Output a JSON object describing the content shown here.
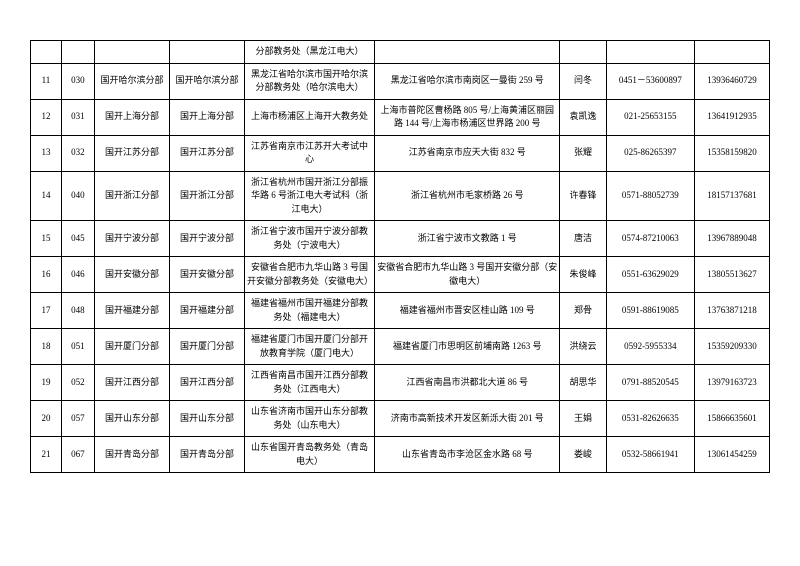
{
  "table": {
    "columns": [
      "c0",
      "c1",
      "c2",
      "c3",
      "c4",
      "c5",
      "c6",
      "c7",
      "c8"
    ],
    "rows": [
      [
        "",
        "",
        "",
        "",
        "分部教务处（黑龙江电大）",
        "",
        "",
        "",
        ""
      ],
      [
        "11",
        "030",
        "国开哈尔滨分部",
        "国开哈尔滨分部",
        "黑龙江省哈尔滨市国开哈尔滨分部教务处（哈尔滨电大）",
        "黑龙江省哈尔滨市南岗区一曼街 259 号",
        "闫冬",
        "0451－53600897",
        "13936460729"
      ],
      [
        "12",
        "031",
        "国开上海分部",
        "国开上海分部",
        "上海市杨浦区上海开大教务处",
        "上海市普陀区曹杨路 805 号/上海黄浦区丽园路 144 号/上海市杨浦区世界路 200 号",
        "袁凯逸",
        "021-25653155",
        "13641912935"
      ],
      [
        "13",
        "032",
        "国开江苏分部",
        "国开江苏分部",
        "江苏省南京市江苏开大考试中心",
        "江苏省南京市应天大街 832 号",
        "张耀",
        "025-86265397",
        "15358159820"
      ],
      [
        "14",
        "040",
        "国开浙江分部",
        "国开浙江分部",
        "浙江省杭州市国开浙江分部振华路 6 号浙江电大考试科（浙江电大）",
        "浙江省杭州市毛家桥路 26 号",
        "许春锋",
        "0571-88052739",
        "18157137681"
      ],
      [
        "15",
        "045",
        "国开宁波分部",
        "国开宁波分部",
        "浙江省宁波市国开宁波分部教务处（宁波电大）",
        "浙江省宁波市文教路 1 号",
        "唐洁",
        "0574-87210063",
        "13967889048"
      ],
      [
        "16",
        "046",
        "国开安徽分部",
        "国开安徽分部",
        "安徽省合肥市九华山路 3 号国开安徽分部教务处（安徽电大）",
        "安徽省合肥市九华山路 3 号国开安徽分部（安徽电大）",
        "朱俊峰",
        "0551-63629029",
        "13805513627"
      ],
      [
        "17",
        "048",
        "国开福建分部",
        "国开福建分部",
        "福建省福州市国开福建分部教务处（福建电大）",
        "福建省福州市晋安区桂山路 109 号",
        "郑骨",
        "0591-88619085",
        "13763871218"
      ],
      [
        "18",
        "051",
        "国开厦门分部",
        "国开厦门分部",
        "福建省厦门市国开厦门分部开放教育学院（厦门电大）",
        "福建省厦门市思明区前埔南路 1263 号",
        "洪绕云",
        "0592-5955334",
        "15359209330"
      ],
      [
        "19",
        "052",
        "国开江西分部",
        "国开江西分部",
        "江西省南昌市国开江西分部教务处（江西电大）",
        "江西省南昌市洪都北大道 86 号",
        "胡思华",
        "0791-88520545",
        "13979163723"
      ],
      [
        "20",
        "057",
        "国开山东分部",
        "国开山东分部",
        "山东省济南市国开山东分部教务处（山东电大）",
        "济南市高新技术开发区新泺大街 201 号",
        "王娟",
        "0531-82626635",
        "15866635601"
      ],
      [
        "21",
        "067",
        "国开青岛分部",
        "国开青岛分部",
        "山东省国开青岛教务处（青岛电大）",
        "山东省青岛市李沧区金水路 68 号",
        "娄峻",
        "0532-58661941",
        "13061454259"
      ]
    ],
    "border_color": "#000000",
    "background_color": "#ffffff",
    "font_size": 9,
    "text_color": "#000000"
  }
}
